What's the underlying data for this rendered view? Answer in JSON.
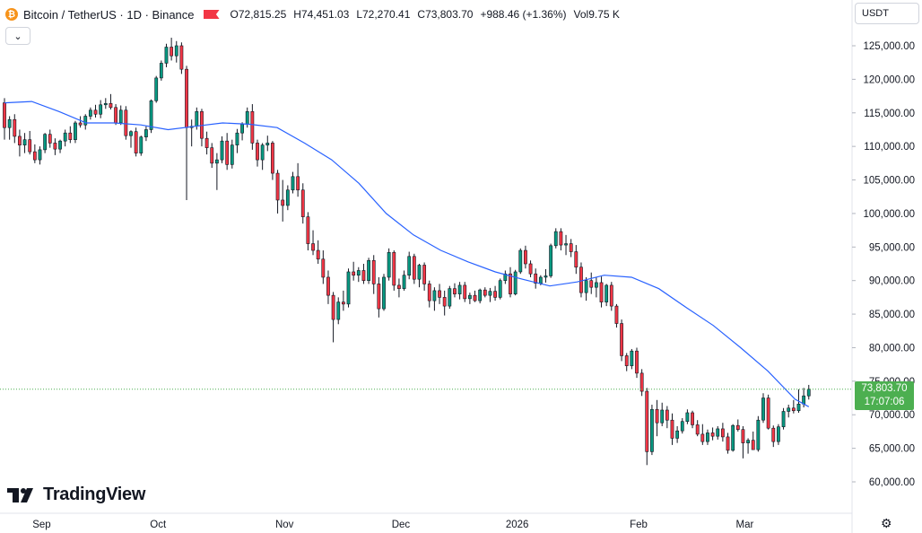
{
  "header": {
    "coin_glyph": "₿",
    "symbol": "Bitcoin / TetherUS · 1D · Binance",
    "open_label": "O",
    "open": "72,815.25",
    "high_label": "H",
    "high": "74,451.03",
    "low_label": "L",
    "low": "72,270.41",
    "close_label": "C",
    "close": "73,803.70",
    "change": "+988.46 (+1.36%)",
    "vol_label": "Vol",
    "vol": "9.75 K"
  },
  "toolbar": {
    "collapse_icon": "chevron-down-icon",
    "collapse_glyph": "⌄"
  },
  "price_scale": {
    "currency": "USDT",
    "labels": [
      "125,000.00",
      "120,000.00",
      "115,000.00",
      "110,000.00",
      "105,000.00",
      "100,000.00",
      "95,000.00",
      "90,000.00",
      "85,000.00",
      "80,000.00",
      "75,000.00",
      "70,000.00",
      "65,000.00",
      "60,000.00"
    ],
    "last_price": "73,803.70",
    "countdown": "17:07:06"
  },
  "time_scale": {
    "labels": [
      "Sep",
      "Oct",
      "Nov",
      "Dec",
      "2026",
      "Feb",
      "Mar"
    ]
  },
  "brand": {
    "name": "TradingView"
  },
  "settings_icon": "gear-icon",
  "colors": {
    "up": "#089981",
    "down": "#f23645",
    "ma": "#2962ff",
    "last": "#4caf50",
    "grid": "#e0e3eb"
  },
  "chart_data": {
    "type": "candlestick",
    "y_range": [
      57500,
      129000
    ],
    "moving_average": [
      [
        0,
        116500
      ],
      [
        30,
        116700
      ],
      [
        60,
        115200
      ],
      [
        90,
        113500
      ],
      [
        120,
        113500
      ],
      [
        150,
        113200
      ],
      [
        180,
        112500
      ],
      [
        210,
        113000
      ],
      [
        240,
        113500
      ],
      [
        270,
        113300
      ],
      [
        300,
        112800
      ],
      [
        330,
        110500
      ],
      [
        360,
        108000
      ],
      [
        390,
        104500
      ],
      [
        420,
        100000
      ],
      [
        450,
        96800
      ],
      [
        480,
        94500
      ],
      [
        510,
        92800
      ],
      [
        540,
        91300
      ],
      [
        570,
        90200
      ],
      [
        600,
        89200
      ],
      [
        630,
        89800
      ],
      [
        660,
        90800
      ],
      [
        690,
        90500
      ],
      [
        720,
        88800
      ],
      [
        750,
        86000
      ],
      [
        780,
        83300
      ],
      [
        810,
        80000
      ],
      [
        840,
        76500
      ],
      [
        870,
        72300
      ],
      [
        885,
        71200
      ]
    ],
    "candles": [
      [
        116500,
        117200,
        111000,
        112800
      ],
      [
        112800,
        114500,
        111000,
        114000
      ],
      [
        114000,
        114800,
        110500,
        111500
      ],
      [
        111500,
        112500,
        108500,
        110200
      ],
      [
        110200,
        112000,
        109000,
        111000
      ],
      [
        111000,
        112300,
        108800,
        109200
      ],
      [
        109200,
        110300,
        107500,
        108000
      ],
      [
        108000,
        110000,
        107300,
        109500
      ],
      [
        109500,
        112000,
        109000,
        111800
      ],
      [
        111800,
        112500,
        109800,
        110500
      ],
      [
        110500,
        111200,
        108700,
        109600
      ],
      [
        109600,
        111000,
        109000,
        110800
      ],
      [
        110800,
        112500,
        110000,
        112000
      ],
      [
        112000,
        113000,
        110500,
        111000
      ],
      [
        111000,
        113800,
        110500,
        113500
      ],
      [
        113500,
        114500,
        112800,
        113200
      ],
      [
        113200,
        114800,
        112500,
        114500
      ],
      [
        114500,
        115800,
        114000,
        115400
      ],
      [
        115400,
        116200,
        114300,
        114800
      ],
      [
        114800,
        116900,
        114200,
        116200
      ],
      [
        116200,
        117200,
        115600,
        116400
      ],
      [
        116400,
        117800,
        115500,
        115800
      ],
      [
        115800,
        116300,
        113200,
        113500
      ],
      [
        113500,
        116100,
        113200,
        115400
      ],
      [
        115400,
        116000,
        111000,
        111600
      ],
      [
        111600,
        112400,
        109800,
        112200
      ],
      [
        112200,
        112800,
        108500,
        109000
      ],
      [
        109000,
        111600,
        108600,
        111400
      ],
      [
        111400,
        113000,
        110800,
        112500
      ],
      [
        112500,
        117000,
        112000,
        116800
      ],
      [
        116800,
        120500,
        116500,
        120200
      ],
      [
        120200,
        122800,
        119800,
        122400
      ],
      [
        122400,
        125300,
        121800,
        124800
      ],
      [
        124800,
        126200,
        122800,
        123500
      ],
      [
        123500,
        125700,
        122500,
        125000
      ],
      [
        125000,
        125500,
        120800,
        121500
      ],
      [
        121500,
        122000,
        102000,
        112800
      ],
      [
        112800,
        114000,
        110000,
        113000
      ],
      [
        113000,
        115800,
        112500,
        115200
      ],
      [
        115200,
        115600,
        110000,
        111200
      ],
      [
        111200,
        112200,
        108800,
        109800
      ],
      [
        109800,
        110500,
        106800,
        107500
      ],
      [
        107500,
        109000,
        103500,
        108000
      ],
      [
        108000,
        111500,
        107500,
        110800
      ],
      [
        110800,
        112000,
        106500,
        107300
      ],
      [
        107300,
        111000,
        106700,
        110200
      ],
      [
        110200,
        112600,
        109000,
        112000
      ],
      [
        112000,
        113600,
        110900,
        113300
      ],
      [
        113300,
        115800,
        112800,
        115200
      ],
      [
        115200,
        116300,
        109500,
        110500
      ],
      [
        110500,
        111000,
        107000,
        108000
      ],
      [
        108000,
        110500,
        106500,
        110200
      ],
      [
        110200,
        111600,
        109300,
        110500
      ],
      [
        110500,
        110800,
        105000,
        106000
      ],
      [
        106000,
        106500,
        100000,
        102000
      ],
      [
        102000,
        105000,
        98800,
        101200
      ],
      [
        101200,
        104200,
        100500,
        103500
      ],
      [
        103500,
        106200,
        103000,
        105500
      ],
      [
        105500,
        107500,
        102500,
        103500
      ],
      [
        103500,
        104500,
        98500,
        99500
      ],
      [
        99500,
        100200,
        94500,
        95500
      ],
      [
        95500,
        97500,
        93800,
        94500
      ],
      [
        94500,
        96000,
        92500,
        93200
      ],
      [
        93200,
        94500,
        89500,
        90500
      ],
      [
        90500,
        91500,
        86500,
        87800
      ],
      [
        87800,
        88300,
        80800,
        84200
      ],
      [
        84200,
        87500,
        83500,
        86800
      ],
      [
        86800,
        88500,
        85500,
        86500
      ],
      [
        86500,
        91800,
        86000,
        91300
      ],
      [
        91300,
        92800,
        90000,
        90800
      ],
      [
        90800,
        92000,
        89800,
        91500
      ],
      [
        91500,
        92500,
        89500,
        90000
      ],
      [
        90000,
        93400,
        89500,
        93000
      ],
      [
        93000,
        93800,
        88000,
        89500
      ],
      [
        89500,
        90500,
        84500,
        85800
      ],
      [
        85800,
        91000,
        85500,
        90500
      ],
      [
        90500,
        94800,
        90000,
        94200
      ],
      [
        94200,
        94500,
        88500,
        89300
      ],
      [
        89300,
        90300,
        87500,
        88800
      ],
      [
        88800,
        91500,
        88500,
        90800
      ],
      [
        90800,
        94300,
        90200,
        93600
      ],
      [
        93600,
        94000,
        89500,
        90200
      ],
      [
        90200,
        92500,
        89000,
        92300
      ],
      [
        92300,
        92700,
        88500,
        89500
      ],
      [
        89500,
        90000,
        86000,
        87000
      ],
      [
        87000,
        89000,
        85500,
        88500
      ],
      [
        88500,
        89500,
        86500,
        87500
      ],
      [
        87500,
        88500,
        84800,
        86200
      ],
      [
        86200,
        89200,
        85800,
        88800
      ],
      [
        88800,
        89600,
        87500,
        88000
      ],
      [
        88000,
        89800,
        87200,
        89300
      ],
      [
        89300,
        89800,
        86800,
        87300
      ],
      [
        87300,
        88200,
        86500,
        87800
      ],
      [
        87800,
        88500,
        86800,
        87000
      ],
      [
        87000,
        88800,
        86600,
        88600
      ],
      [
        88600,
        89000,
        87500,
        87800
      ],
      [
        87800,
        88900,
        86800,
        88400
      ],
      [
        88400,
        89200,
        87000,
        87500
      ],
      [
        87500,
        90300,
        87200,
        90000
      ],
      [
        90000,
        91500,
        89500,
        91000
      ],
      [
        91000,
        92000,
        87500,
        88000
      ],
      [
        88000,
        91600,
        87800,
        91300
      ],
      [
        91300,
        94800,
        91000,
        94500
      ],
      [
        94500,
        95200,
        91800,
        92500
      ],
      [
        92500,
        93000,
        90500,
        91000
      ],
      [
        91000,
        91800,
        88800,
        89600
      ],
      [
        89600,
        90800,
        89300,
        90500
      ],
      [
        90500,
        91700,
        89700,
        90700
      ],
      [
        90700,
        95500,
        90400,
        95200
      ],
      [
        95200,
        97800,
        94800,
        97300
      ],
      [
        97300,
        97800,
        94500,
        95300
      ],
      [
        95300,
        96800,
        93800,
        95500
      ],
      [
        95500,
        96200,
        93500,
        94300
      ],
      [
        94300,
        95300,
        91000,
        92000
      ],
      [
        92000,
        92700,
        87500,
        88200
      ],
      [
        88200,
        90500,
        87000,
        90000
      ],
      [
        90000,
        91200,
        88000,
        89000
      ],
      [
        89000,
        90500,
        87500,
        89700
      ],
      [
        89700,
        90600,
        86000,
        86800
      ],
      [
        86800,
        89500,
        86200,
        89300
      ],
      [
        89300,
        89800,
        85500,
        86200
      ],
      [
        86200,
        86500,
        83000,
        83600
      ],
      [
        83600,
        84200,
        78000,
        78800
      ],
      [
        78800,
        79200,
        76500,
        77300
      ],
      [
        77300,
        79800,
        76800,
        79500
      ],
      [
        79500,
        80000,
        75500,
        76200
      ],
      [
        76200,
        76800,
        72800,
        73500
      ],
      [
        73500,
        74000,
        62500,
        64500
      ],
      [
        64500,
        71500,
        64000,
        70800
      ],
      [
        70800,
        72200,
        66800,
        68800
      ],
      [
        68800,
        71800,
        68300,
        70700
      ],
      [
        70700,
        71300,
        68000,
        69200
      ],
      [
        69200,
        70200,
        65500,
        66500
      ],
      [
        66500,
        68300,
        65800,
        67600
      ],
      [
        67600,
        69500,
        67200,
        69000
      ],
      [
        69000,
        70800,
        68600,
        70300
      ],
      [
        70300,
        70600,
        68000,
        68500
      ],
      [
        68500,
        69200,
        66800,
        67100
      ],
      [
        67100,
        68600,
        65500,
        66000
      ],
      [
        66000,
        67800,
        65500,
        67300
      ],
      [
        67300,
        68100,
        66200,
        66800
      ],
      [
        66800,
        68300,
        66300,
        67900
      ],
      [
        67900,
        68800,
        66000,
        66700
      ],
      [
        66700,
        67300,
        64200,
        64700
      ],
      [
        64700,
        68600,
        64500,
        68400
      ],
      [
        68400,
        69300,
        67500,
        67800
      ],
      [
        67800,
        68300,
        63500,
        65800
      ],
      [
        65800,
        66500,
        64200,
        66200
      ],
      [
        66200,
        67500,
        65200,
        64800
      ],
      [
        64800,
        69800,
        64500,
        69200
      ],
      [
        69200,
        73200,
        68800,
        72500
      ],
      [
        72500,
        73000,
        67800,
        68000
      ],
      [
        68000,
        68400,
        65200,
        66000
      ],
      [
        66000,
        68600,
        65500,
        68200
      ],
      [
        68200,
        71000,
        67800,
        70500
      ],
      [
        70500,
        71500,
        69600,
        71000
      ],
      [
        71000,
        72200,
        70200,
        70600
      ],
      [
        70600,
        73800,
        70300,
        71600
      ],
      [
        71600,
        74000,
        71100,
        72815
      ],
      [
        72815,
        74451,
        72270,
        73803
      ]
    ]
  }
}
